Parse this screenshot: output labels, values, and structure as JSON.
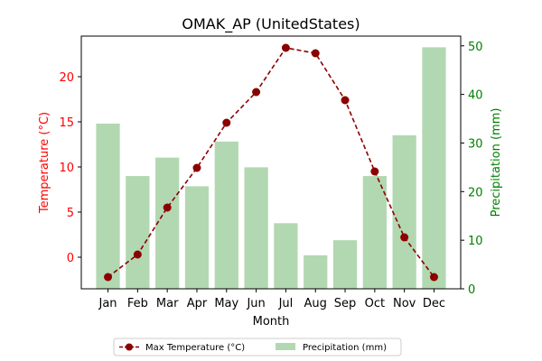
{
  "chart_data": {
    "type": "bar+line",
    "title": "OMAK_AP (UnitedStates)",
    "xlabel": "Month",
    "categories": [
      "Jan",
      "Feb",
      "Mar",
      "Apr",
      "May",
      "Jun",
      "Jul",
      "Aug",
      "Sep",
      "Oct",
      "Nov",
      "Dec"
    ],
    "left_axis": {
      "label": "Temperature (°C)",
      "color": "#ff0000",
      "ylim": [
        -3.5,
        24.5
      ],
      "ticks": [
        0,
        5,
        10,
        15,
        20
      ]
    },
    "right_axis": {
      "label": "Precipitation (mm)",
      "color": "#008000",
      "ylim": [
        0,
        52
      ],
      "ticks": [
        0,
        10,
        20,
        30,
        40,
        50
      ]
    },
    "series": [
      {
        "name": "Max Temperature (°C)",
        "kind": "line",
        "axis": "left",
        "color": "#8b0000",
        "values": [
          -2.2,
          0.3,
          5.5,
          9.9,
          14.9,
          18.3,
          23.2,
          22.6,
          17.4,
          9.5,
          2.2,
          -2.2
        ]
      },
      {
        "name": "Precipitation (mm)",
        "kind": "bar",
        "axis": "right",
        "color": "#b2d8b2",
        "values": [
          34.0,
          23.2,
          27.0,
          21.1,
          30.3,
          25.0,
          13.5,
          6.9,
          10.0,
          23.2,
          31.6,
          49.7
        ]
      }
    ],
    "legend": {
      "placement": "bottom-center",
      "columns": 2
    },
    "grid": false
  }
}
